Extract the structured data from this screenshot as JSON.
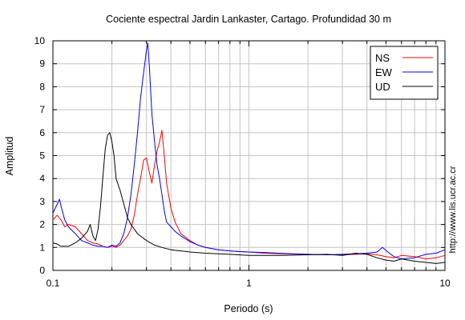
{
  "chart_data": {
    "type": "line",
    "title": "Cociente espectral Jardin Lankaster, Cartago. Profundidad 30 m",
    "xlabel": "Periodo (s)",
    "ylabel": "Amplitud",
    "xscale": "log",
    "xlim": [
      0.1,
      10
    ],
    "ylim": [
      0,
      10
    ],
    "x_ticks": [
      0.1,
      1,
      10
    ],
    "x_tick_labels": [
      "0.1",
      "1",
      "10"
    ],
    "y_ticks": [
      0,
      1,
      2,
      3,
      4,
      5,
      6,
      7,
      8,
      9,
      10
    ],
    "y_tick_labels": [
      "0",
      "1",
      "2",
      "3",
      "4",
      "5",
      "6",
      "7",
      "8",
      "9",
      "10"
    ],
    "grid": true,
    "legend_position": "top-right",
    "watermark": "http://www.lis.ucr.ac.cr",
    "series": [
      {
        "name": "NS",
        "color": "#ff0000",
        "x": [
          0.1,
          0.105,
          0.11,
          0.115,
          0.12,
          0.13,
          0.14,
          0.15,
          0.16,
          0.17,
          0.18,
          0.19,
          0.2,
          0.21,
          0.22,
          0.23,
          0.24,
          0.25,
          0.26,
          0.27,
          0.28,
          0.29,
          0.3,
          0.31,
          0.32,
          0.33,
          0.34,
          0.35,
          0.36,
          0.37,
          0.38,
          0.4,
          0.42,
          0.45,
          0.5,
          0.55,
          0.6,
          0.7,
          0.8,
          0.9,
          1,
          1.2,
          1.5,
          2,
          2.5,
          3,
          3.5,
          4,
          4.5,
          5,
          5.5,
          6,
          7,
          8,
          9,
          10
        ],
        "y": [
          2.2,
          2.4,
          2.2,
          1.9,
          2.0,
          1.9,
          1.6,
          1.3,
          1.2,
          1.15,
          1.05,
          1.0,
          1.05,
          1.0,
          1.1,
          1.3,
          1.5,
          1.8,
          2.4,
          3.3,
          4.0,
          4.8,
          4.9,
          4.3,
          3.8,
          4.6,
          5.2,
          5.6,
          6.1,
          5.0,
          3.8,
          2.7,
          2.1,
          1.6,
          1.3,
          1.1,
          1.0,
          0.9,
          0.85,
          0.82,
          0.8,
          0.75,
          0.72,
          0.7,
          0.68,
          0.68,
          0.7,
          0.72,
          0.68,
          0.6,
          0.55,
          0.65,
          0.6,
          0.5,
          0.55,
          0.65
        ]
      },
      {
        "name": "EW",
        "color": "#0000ff",
        "x": [
          0.1,
          0.104,
          0.108,
          0.11,
          0.115,
          0.12,
          0.13,
          0.14,
          0.15,
          0.16,
          0.17,
          0.18,
          0.19,
          0.2,
          0.21,
          0.22,
          0.23,
          0.24,
          0.25,
          0.26,
          0.27,
          0.28,
          0.29,
          0.3,
          0.305,
          0.31,
          0.32,
          0.33,
          0.34,
          0.35,
          0.36,
          0.37,
          0.38,
          0.4,
          0.42,
          0.45,
          0.5,
          0.55,
          0.6,
          0.7,
          0.8,
          0.9,
          1,
          1.2,
          1.5,
          2,
          2.5,
          3,
          3.5,
          4,
          4.5,
          4.8,
          5.2,
          5.5,
          6,
          7,
          8,
          9,
          10
        ],
        "y": [
          2.5,
          2.8,
          3.1,
          2.8,
          2.2,
          1.9,
          1.6,
          1.3,
          1.2,
          1.1,
          1.05,
          1.05,
          1.0,
          1.1,
          1.05,
          1.2,
          1.6,
          2.3,
          3.3,
          4.6,
          6.0,
          7.5,
          8.6,
          9.6,
          9.9,
          9.0,
          6.8,
          5.6,
          4.6,
          4.0,
          3.3,
          2.6,
          2.1,
          1.9,
          1.7,
          1.5,
          1.25,
          1.1,
          1.0,
          0.9,
          0.85,
          0.82,
          0.8,
          0.78,
          0.74,
          0.7,
          0.68,
          0.7,
          0.72,
          0.75,
          0.8,
          1.0,
          0.75,
          0.6,
          0.5,
          0.55,
          0.7,
          0.75,
          0.9
        ]
      },
      {
        "name": "UD",
        "color": "#000000",
        "x": [
          0.1,
          0.105,
          0.11,
          0.12,
          0.13,
          0.14,
          0.15,
          0.155,
          0.16,
          0.165,
          0.17,
          0.175,
          0.18,
          0.185,
          0.19,
          0.195,
          0.2,
          0.205,
          0.21,
          0.22,
          0.23,
          0.24,
          0.25,
          0.27,
          0.3,
          0.33,
          0.36,
          0.4,
          0.45,
          0.5,
          0.6,
          0.7,
          0.8,
          1,
          1.2,
          1.5,
          2,
          2.5,
          3,
          3.5,
          4,
          4.5,
          5,
          5.5,
          6,
          7,
          8,
          9,
          10
        ],
        "y": [
          1.2,
          1.15,
          1.05,
          1.05,
          1.2,
          1.4,
          1.7,
          2.0,
          1.5,
          1.3,
          1.8,
          2.8,
          4.1,
          5.3,
          5.9,
          6.0,
          5.6,
          5.0,
          4.0,
          3.5,
          2.9,
          2.3,
          2.0,
          1.6,
          1.3,
          1.1,
          1.0,
          0.9,
          0.85,
          0.8,
          0.75,
          0.72,
          0.7,
          0.65,
          0.65,
          0.65,
          0.68,
          0.7,
          0.65,
          0.75,
          0.7,
          0.55,
          0.45,
          0.4,
          0.5,
          0.4,
          0.35,
          0.3,
          0.35
        ]
      }
    ]
  }
}
